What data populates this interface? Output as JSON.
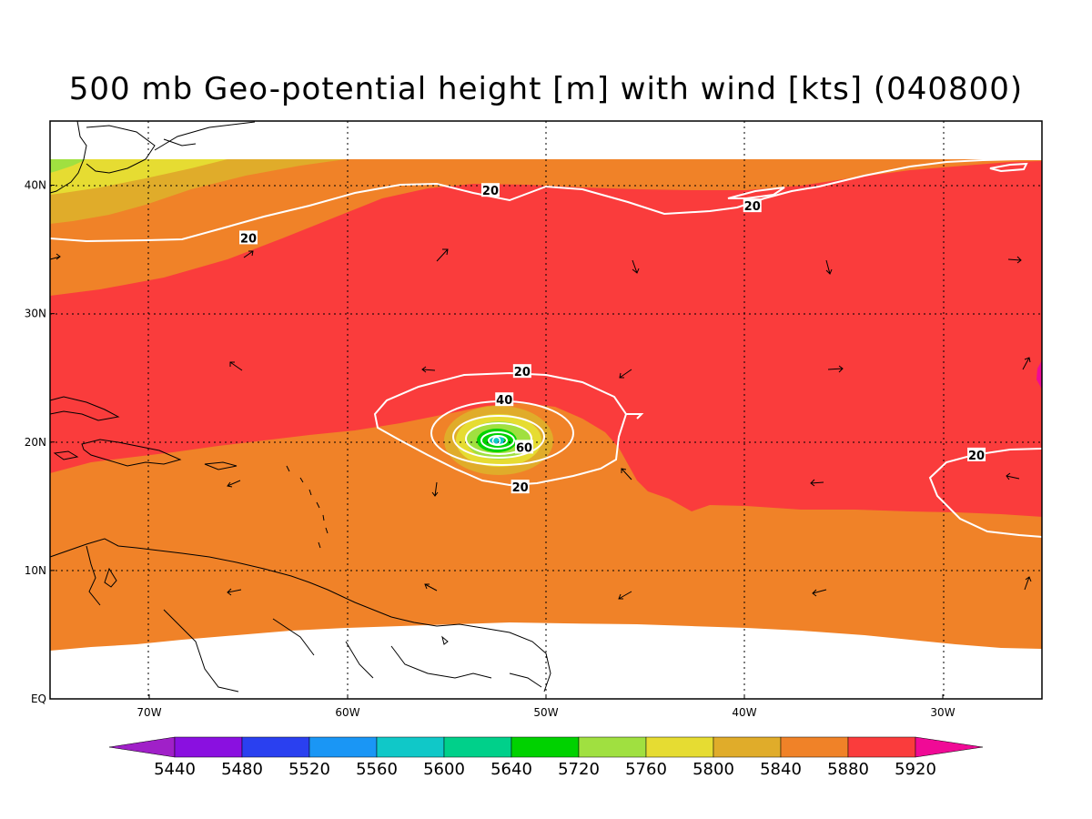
{
  "title": "500 mb Geo-potential height [m] with wind [kts] (040800)",
  "colors": {
    "frame": "#000000",
    "land_outline": "#000000",
    "wind_contour": "#ffffff",
    "no_data": "#ffffff"
  },
  "map": {
    "lon_range": [
      -75,
      -25
    ],
    "lat_range": [
      0,
      45
    ],
    "lon_ticks": [
      {
        "lon": -70,
        "label": "70W"
      },
      {
        "lon": -60,
        "label": "60W"
      },
      {
        "lon": -50,
        "label": "50W"
      },
      {
        "lon": -40,
        "label": "40W"
      },
      {
        "lon": -30,
        "label": "30W"
      }
    ],
    "lat_ticks": [
      {
        "lat": 0,
        "label": "EQ"
      },
      {
        "lat": 10,
        "label": "10N"
      },
      {
        "lat": 20,
        "label": "20N"
      },
      {
        "lat": 30,
        "label": "30N"
      },
      {
        "lat": 40,
        "label": "40N"
      }
    ],
    "grid": "dotted",
    "wind_contour_labels": [
      {
        "value": "20",
        "lon": -65,
        "lat": 35.9
      },
      {
        "value": "20",
        "lon": -52.8,
        "lat": 39.6
      },
      {
        "value": "20",
        "lon": -39.6,
        "lat": 38.4
      },
      {
        "value": "20",
        "lon": -51.2,
        "lat": 25.5
      },
      {
        "value": "40",
        "lon": -52.1,
        "lat": 23.3
      },
      {
        "value": "60",
        "lon": -51.1,
        "lat": 19.6
      },
      {
        "value": "20",
        "lon": -51.3,
        "lat": 16.5
      },
      {
        "value": "20",
        "lon": -28.3,
        "lat": 19.0
      }
    ],
    "storm_center": {
      "lon": -52.5,
      "lat": 20.1
    }
  },
  "colorbar": {
    "bins": [
      {
        "label": "",
        "color": "#a020c8"
      },
      {
        "label": "5440",
        "color": "#8a10e0"
      },
      {
        "label": "5480",
        "color": "#2a40f0"
      },
      {
        "label": "5520",
        "color": "#1a96f5"
      },
      {
        "label": "5560",
        "color": "#10c8c8"
      },
      {
        "label": "5600",
        "color": "#00d08a"
      },
      {
        "label": "5640",
        "color": "#00d200"
      },
      {
        "label": "5720",
        "color": "#a0e040"
      },
      {
        "label": "5760",
        "color": "#e6dc32"
      },
      {
        "label": "5800",
        "color": "#e0ac2a"
      },
      {
        "label": "5840",
        "color": "#f08228"
      },
      {
        "label": "5880",
        "color": "#fa3c3c"
      },
      {
        "label": "5920",
        "color": "#f00a96"
      }
    ]
  }
}
